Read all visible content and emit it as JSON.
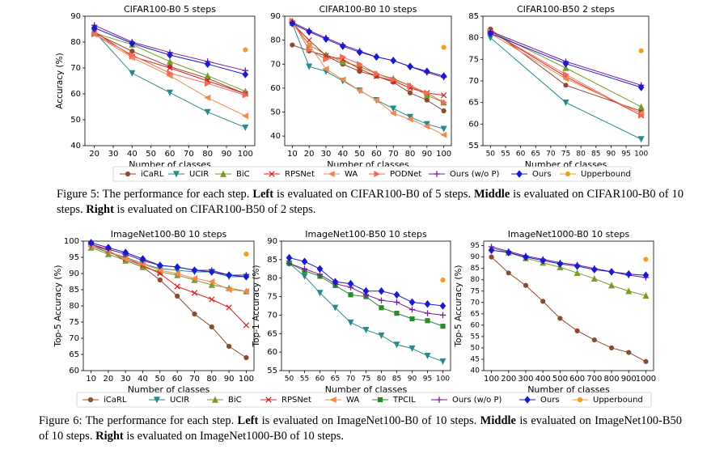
{
  "figures": [
    {
      "legend": [
        {
          "name": "iCaRL",
          "color": "#8c4a2f",
          "marker": "circle"
        },
        {
          "name": "UCIR",
          "color": "#2a8a8a",
          "marker": "tri-down"
        },
        {
          "name": "BiC",
          "color": "#7a9a2a",
          "marker": "tri-up"
        },
        {
          "name": "RPSNet",
          "color": "#e02020",
          "marker": "x"
        },
        {
          "name": "WA",
          "color": "#f08a50",
          "marker": "tri-left"
        },
        {
          "name": "PODNet",
          "color": "#f06a5a",
          "marker": "tri-right"
        },
        {
          "name": "Ours (w/o P)",
          "color": "#7a1a9a",
          "marker": "plus"
        },
        {
          "name": "Ours",
          "color": "#1a1ad0",
          "marker": "diamond"
        },
        {
          "name": "Upperbound",
          "color": "#f0a020",
          "marker": "circle"
        }
      ],
      "chart_data": [
        {
          "type": "line",
          "title": "CIFAR100-B0 5 steps",
          "x_label": "Number of classes",
          "y_label": "Accuracy (%)",
          "x": [
            20,
            40,
            60,
            80,
            100
          ],
          "xlim": [
            15,
            105
          ],
          "xticks": [
            20,
            30,
            40,
            50,
            60,
            70,
            80,
            90,
            100
          ],
          "ylim": [
            40,
            90
          ],
          "yticks": [
            40,
            50,
            60,
            70,
            80,
            90
          ],
          "series": [
            {
              "values": [
                83.5,
                76.5,
                70.5,
                66,
                60
              ]
            },
            {
              "values": [
                84,
                68,
                60.5,
                53,
                47
              ]
            },
            {
              "values": [
                83.5,
                79,
                72.5,
                67,
                61
              ]
            },
            {
              "values": [
                84,
                74.5,
                70,
                65,
                60
              ]
            },
            {
              "values": [
                83,
                74,
                67,
                58.5,
                51.5
              ]
            },
            {
              "values": [
                83,
                75,
                68,
                64,
                59.5
              ]
            },
            {
              "values": [
                86.5,
                80,
                76,
                72.5,
                69
              ]
            },
            {
              "values": [
                85.5,
                79.5,
                75,
                71.5,
                67.5
              ]
            },
            {
              "values": [
                null,
                null,
                null,
                null,
                77
              ]
            }
          ]
        },
        {
          "type": "line",
          "title": "CIFAR100-B0 10 steps",
          "x_label": "Number of classes",
          "y_label": null,
          "x": [
            10,
            20,
            30,
            40,
            50,
            60,
            70,
            80,
            90,
            100
          ],
          "xlim": [
            5.5,
            104.5
          ],
          "xticks": [
            10,
            20,
            30,
            40,
            50,
            60,
            70,
            80,
            90,
            100
          ],
          "ylim": [
            36,
            90
          ],
          "yticks": [
            40,
            50,
            60,
            70,
            80,
            90
          ],
          "series": [
            {
              "values": [
                78,
                75.5,
                73.5,
                70,
                67,
                65,
                62.5,
                58,
                55,
                50.5
              ]
            },
            {
              "values": [
                87,
                69,
                67,
                63,
                59,
                55,
                51.5,
                48,
                45,
                43
              ]
            },
            {
              "values": [
                88,
                78,
                74,
                71,
                69,
                66,
                64,
                61,
                57,
                54
              ]
            },
            {
              "values": [
                87,
                80,
                73.5,
                72,
                68,
                65,
                63,
                60,
                58,
                57
              ]
            },
            {
              "values": [
                87,
                78,
                68,
                63.5,
                59,
                55,
                49.5,
                47,
                44,
                40.5
              ]
            },
            {
              "values": [
                88,
                76,
                72,
                73,
                70,
                66,
                63.5,
                61,
                58,
                54
              ]
            },
            {
              "values": [
                87.5,
                84,
                81,
                78,
                75.5,
                73,
                71.5,
                69,
                66.5,
                64.5
              ]
            },
            {
              "values": [
                87,
                83.5,
                80.5,
                77.5,
                75,
                73,
                71.5,
                69,
                67,
                65
              ]
            },
            {
              "values": [
                null,
                null,
                null,
                null,
                null,
                null,
                null,
                null,
                null,
                77
              ]
            }
          ]
        },
        {
          "type": "line",
          "title": "CIFAR100-B50 2 steps",
          "x_label": "Number of classes",
          "y_label": null,
          "x": [
            50,
            75,
            100
          ],
          "xlim": [
            47.5,
            102.5
          ],
          "xticks": [
            50,
            55,
            60,
            65,
            70,
            75,
            80,
            85,
            90,
            95,
            100
          ],
          "ylim": [
            55,
            85
          ],
          "yticks": [
            55,
            60,
            65,
            70,
            75,
            80,
            85
          ],
          "series": [
            {
              "values": [
                82,
                69,
                63
              ]
            },
            {
              "values": [
                80,
                65,
                56.5
              ]
            },
            {
              "values": [
                81.5,
                73,
                64
              ]
            },
            {
              "values": [
                81.5,
                71,
                62
              ]
            },
            {
              "values": [
                81,
                70.5,
                62.5
              ]
            },
            {
              "values": [
                81.5,
                71.5,
                62
              ]
            },
            {
              "values": [
                81.5,
                74.5,
                69
              ]
            },
            {
              "values": [
                81,
                74,
                68.5
              ]
            },
            {
              "values": [
                null,
                null,
                77
              ]
            }
          ]
        }
      ],
      "caption": [
        "Figure 5: The performance for each step. ",
        "Left",
        " is evaluated on CIFAR100-B0 of 5 steps. ",
        "Middle",
        " is evaluated on CIFAR100-B0 of 10 steps. ",
        "Right",
        " is evaluated on CIFAR100-B50 of 2 steps."
      ]
    },
    {
      "legend": [
        {
          "name": "iCaRL",
          "color": "#8c4a2f",
          "marker": "circle"
        },
        {
          "name": "UCIR",
          "color": "#2a8a8a",
          "marker": "tri-down"
        },
        {
          "name": "BiC",
          "color": "#7a9a2a",
          "marker": "tri-up"
        },
        {
          "name": "RPSNet",
          "color": "#e02020",
          "marker": "x"
        },
        {
          "name": "WA",
          "color": "#f08a50",
          "marker": "tri-left"
        },
        {
          "name": "TPCIL",
          "color": "#2a8a2a",
          "marker": "square"
        },
        {
          "name": "Ours (w/o P)",
          "color": "#7a1a9a",
          "marker": "plus"
        },
        {
          "name": "Ours",
          "color": "#1a1ad0",
          "marker": "diamond"
        },
        {
          "name": "Upperbound",
          "color": "#f0a020",
          "marker": "circle"
        }
      ],
      "chart_data": [
        {
          "type": "line",
          "title": "ImageNet100-B0 10 steps",
          "x_label": "Number of classes",
          "y_label": "Top-5 Accuracy (%)",
          "x": [
            10,
            20,
            30,
            40,
            50,
            60,
            70,
            80,
            90,
            100
          ],
          "xlim": [
            5.5,
            104.5
          ],
          "xticks": [
            10,
            20,
            30,
            40,
            50,
            60,
            70,
            80,
            90,
            100
          ],
          "ylim": [
            60,
            100
          ],
          "yticks": [
            60,
            65,
            70,
            75,
            80,
            85,
            90,
            95,
            100
          ],
          "series": [
            {
              "values": [
                99,
                97,
                94,
                92,
                88,
                83,
                77.5,
                73.5,
                67.5,
                64
              ]
            },
            {
              "values": [
                98.5,
                96.5,
                95,
                93,
                91.5,
                91,
                90.5,
                90.5,
                89,
                89
              ]
            },
            {
              "values": [
                98,
                96,
                94,
                92,
                90.5,
                89.5,
                88,
                86.5,
                85.5,
                84.5
              ]
            },
            {
              "values": [
                99,
                97,
                94.5,
                92.5,
                90,
                86,
                84,
                82,
                79.5,
                74
              ]
            },
            {
              "values": [
                98.5,
                97,
                94.5,
                93,
                91,
                90,
                88.5,
                87.5,
                85,
                84.5
              ]
            },
            null,
            {
              "values": [
                99,
                97.5,
                96,
                94,
                92.5,
                92,
                91,
                91,
                89.5,
                89.5
              ]
            },
            {
              "values": [
                99.5,
                98,
                96.5,
                94.5,
                92.5,
                92,
                91,
                90.5,
                89.5,
                89
              ]
            },
            {
              "values": [
                null,
                null,
                null,
                null,
                null,
                null,
                null,
                null,
                null,
                96
              ]
            }
          ]
        },
        {
          "type": "line",
          "title": "ImageNet100-B50 10 steps",
          "x_label": "Number of classes",
          "y_label": "Top-1 Accuracy (%)",
          "x": [
            50,
            55,
            60,
            65,
            70,
            75,
            80,
            85,
            90,
            95,
            100
          ],
          "xlim": [
            47.5,
            102.5
          ],
          "xticks": [
            50,
            55,
            60,
            65,
            70,
            75,
            80,
            85,
            90,
            95,
            100
          ],
          "ylim": [
            55,
            90
          ],
          "yticks": [
            55,
            60,
            65,
            70,
            75,
            80,
            85,
            90
          ],
          "series": [
            null,
            {
              "values": [
                84,
                80.5,
                76,
                72,
                68,
                66,
                64.5,
                62,
                61,
                59,
                57.5
              ]
            },
            null,
            null,
            null,
            {
              "values": [
                84,
                82,
                80.5,
                78,
                75.5,
                75,
                72,
                70.5,
                69,
                68.5,
                67
              ]
            },
            {
              "values": [
                84,
                82.5,
                81,
                78.5,
                77.5,
                75.5,
                74,
                73.5,
                71.5,
                70.5,
                70
              ]
            },
            {
              "values": [
                85.5,
                84.5,
                82.5,
                79,
                78.5,
                76.5,
                76.5,
                75.5,
                73.5,
                73,
                72.5
              ]
            },
            {
              "values": [
                null,
                null,
                null,
                null,
                null,
                null,
                null,
                null,
                null,
                null,
                79.5
              ]
            }
          ]
        },
        {
          "type": "line",
          "title": "ImageNet1000-B0 10 steps",
          "x_label": "Number of classes",
          "y_label": "Top-5 Accuracy (%)",
          "x": [
            100,
            200,
            300,
            400,
            500,
            600,
            700,
            800,
            900,
            1000
          ],
          "xlim": [
            55,
            1045
          ],
          "xticks": [
            100,
            200,
            300,
            400,
            500,
            600,
            700,
            800,
            900,
            1000
          ],
          "ylim": [
            40,
            97
          ],
          "yticks": [
            40,
            45,
            50,
            55,
            60,
            65,
            70,
            75,
            80,
            85,
            90,
            95
          ],
          "series": [
            {
              "values": [
                90,
                83,
                77.5,
                70.5,
                63,
                57.5,
                53.5,
                50,
                48,
                44
              ]
            },
            null,
            {
              "values": [
                94,
                92,
                89.5,
                87.5,
                85.5,
                83,
                80.5,
                77.5,
                75,
                73
              ]
            },
            null,
            null,
            null,
            {
              "values": [
                94.5,
                92.5,
                90.5,
                89,
                87.5,
                86.5,
                85,
                83.5,
                82,
                81
              ]
            },
            {
              "values": [
                93,
                92,
                90,
                88.5,
                87,
                86,
                84.5,
                83.5,
                82.5,
                82
              ]
            },
            {
              "values": [
                null,
                null,
                null,
                null,
                null,
                null,
                null,
                null,
                null,
                89
              ]
            }
          ]
        }
      ],
      "caption": [
        "Figure 6: The performance for each step. ",
        "Left",
        " is evaluated on ImageNet100-B0 of 10 steps. ",
        "Middle",
        " is evaluated on ImageNet100-B50 of 10 steps. ",
        "Right",
        " is evaluated on ImageNet1000-B0 of 10 steps."
      ]
    }
  ]
}
